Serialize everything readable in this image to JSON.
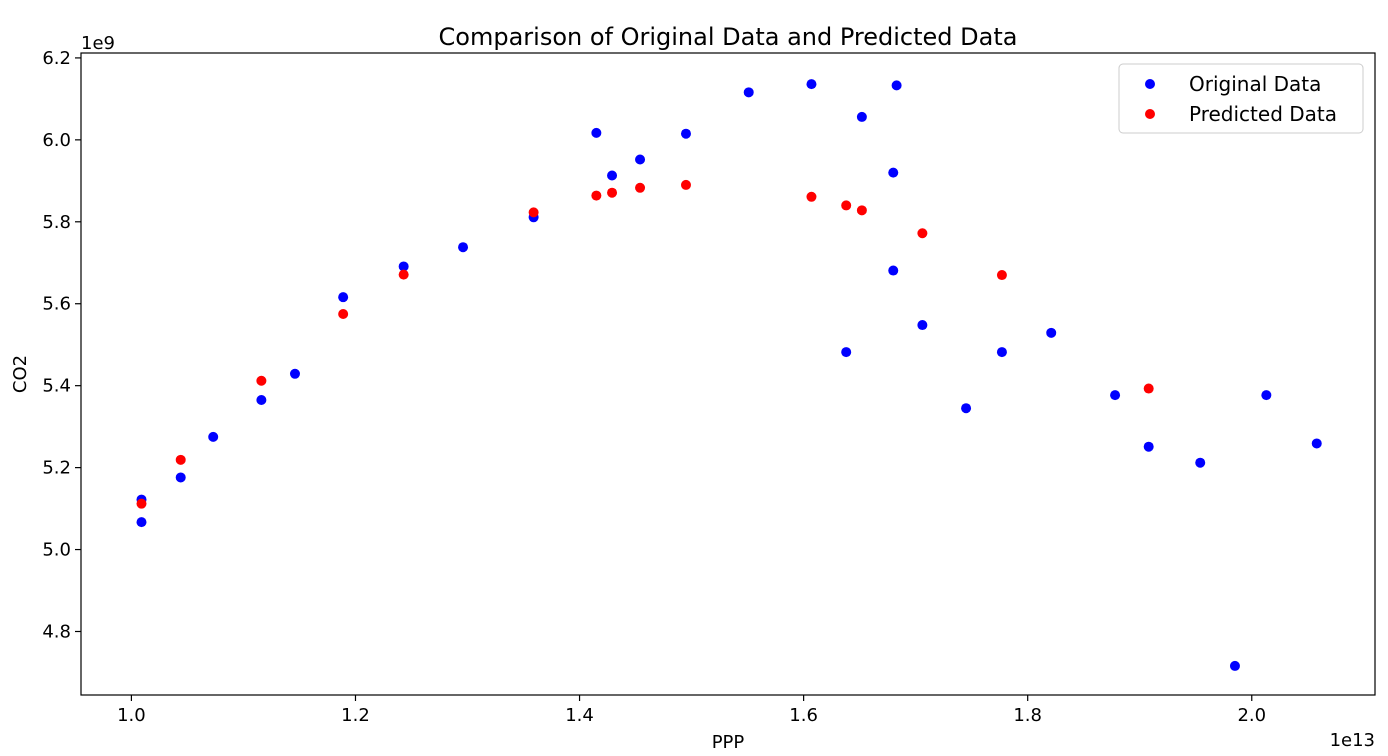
{
  "chart_data": {
    "type": "scatter",
    "title": "Comparison of Original Data and Predicted Data",
    "xlabel": "PPP",
    "ylabel": "CO2",
    "x_offset_text": "1e13",
    "y_offset_text": "1e9",
    "x_scale_exponent": 13,
    "y_scale_exponent": 9,
    "xlim": [
      0.955,
      2.11
    ],
    "ylim": [
      4.645,
      6.212
    ],
    "x_ticks": [
      1.0,
      1.2,
      1.4,
      1.6,
      1.8,
      2.0
    ],
    "x_tick_labels": [
      "1.0",
      "1.2",
      "1.4",
      "1.6",
      "1.8",
      "2.0"
    ],
    "y_ticks": [
      4.8,
      5.0,
      5.2,
      5.4,
      5.6,
      5.8,
      6.0,
      6.2
    ],
    "y_tick_labels": [
      "4.8",
      "5.0",
      "5.2",
      "5.4",
      "5.6",
      "5.8",
      "6.0",
      "6.2"
    ],
    "grid": false,
    "legend_position": "top-right",
    "series": [
      {
        "name": "Original Data",
        "color": "#0000ff",
        "x": [
          1.009,
          1.009,
          1.044,
          1.073,
          1.116,
          1.146,
          1.189,
          1.243,
          1.296,
          1.359,
          1.415,
          1.429,
          1.454,
          1.495,
          1.551,
          1.607,
          1.638,
          1.652,
          1.68,
          1.68,
          1.683,
          1.706,
          1.745,
          1.777,
          1.821,
          1.878,
          1.908,
          1.954,
          1.985,
          2.013,
          2.058
        ],
        "y": [
          5.122,
          5.067,
          5.176,
          5.275,
          5.365,
          5.429,
          5.616,
          5.691,
          5.738,
          5.811,
          6.017,
          5.913,
          5.952,
          6.015,
          6.116,
          6.136,
          5.482,
          6.056,
          5.92,
          5.681,
          6.133,
          5.548,
          5.345,
          5.482,
          5.529,
          5.377,
          5.251,
          5.212,
          4.716,
          5.377,
          5.259
        ]
      },
      {
        "name": "Predicted Data",
        "color": "#ff0000",
        "x": [
          1.009,
          1.044,
          1.116,
          1.189,
          1.243,
          1.359,
          1.415,
          1.429,
          1.454,
          1.495,
          1.607,
          1.638,
          1.652,
          1.706,
          1.777,
          1.908
        ],
        "y": [
          5.112,
          5.219,
          5.412,
          5.575,
          5.671,
          5.823,
          5.864,
          5.871,
          5.883,
          5.89,
          5.861,
          5.84,
          5.828,
          5.772,
          5.67,
          5.393
        ]
      }
    ]
  }
}
